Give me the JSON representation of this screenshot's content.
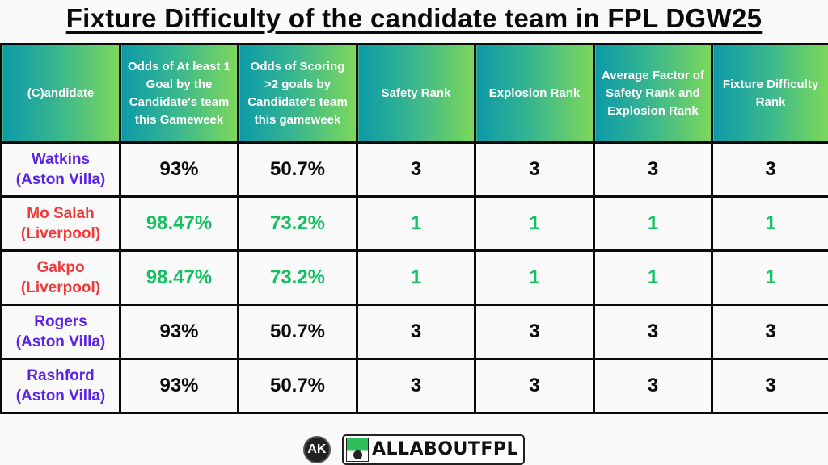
{
  "title": "Fixture Difficulty of the candidate team in FPL DGW25",
  "table": {
    "headers": [
      "(C)andidate",
      "Odds of At least 1 Goal by the Candidate's team this Gameweek",
      "Odds of Scoring >2 goals by Candidate's team this gameweek",
      "Safety Rank",
      "Explosion Rank",
      "Average Factor of Safety Rank and Explosion Rank",
      "Fixture Difficulty Rank"
    ],
    "rows": [
      {
        "player": "Watkins",
        "team": "(Aston Villa)",
        "name_color": "#5b22e8",
        "value_color": "#0a0a0a",
        "odds_1_goal": "93%",
        "odds_over_2": "50.7%",
        "safety_rank": "3",
        "explosion_rank": "3",
        "average_factor": "3",
        "fixture_difficulty_rank": "3"
      },
      {
        "player": "Mo Salah",
        "team": "(Liverpool)",
        "name_color": "#f0393b",
        "value_color": "#13c161",
        "odds_1_goal": "98.47%",
        "odds_over_2": "73.2%",
        "safety_rank": "1",
        "explosion_rank": "1",
        "average_factor": "1",
        "fixture_difficulty_rank": "1"
      },
      {
        "player": "Gakpo",
        "team": "(Liverpool)",
        "name_color": "#f0393b",
        "value_color": "#13c161",
        "odds_1_goal": "98.47%",
        "odds_over_2": "73.2%",
        "safety_rank": "1",
        "explosion_rank": "1",
        "average_factor": "1",
        "fixture_difficulty_rank": "1"
      },
      {
        "player": "Rogers",
        "team": "(Aston Villa)",
        "name_color": "#5b22e8",
        "value_color": "#0a0a0a",
        "odds_1_goal": "93%",
        "odds_over_2": "50.7%",
        "safety_rank": "3",
        "explosion_rank": "3",
        "average_factor": "3",
        "fixture_difficulty_rank": "3"
      },
      {
        "player": "Rashford",
        "team": "(Aston Villa)",
        "name_color": "#5b22e8",
        "value_color": "#0a0a0a",
        "odds_1_goal": "93%",
        "odds_over_2": "50.7%",
        "safety_rank": "3",
        "explosion_rank": "3",
        "average_factor": "3",
        "fixture_difficulty_rank": "3"
      }
    ]
  },
  "footer": {
    "ak_logo_text": "AK",
    "brand_text": "ALLABOUTFPL",
    "brand_icon": "football-boot-icon"
  },
  "colors": {
    "header_gradient_start": "#0c9aa8",
    "header_gradient_end": "#7dd85a",
    "aston_villa": "#5b22e8",
    "liverpool": "#f0393b",
    "best": "#13c161"
  }
}
